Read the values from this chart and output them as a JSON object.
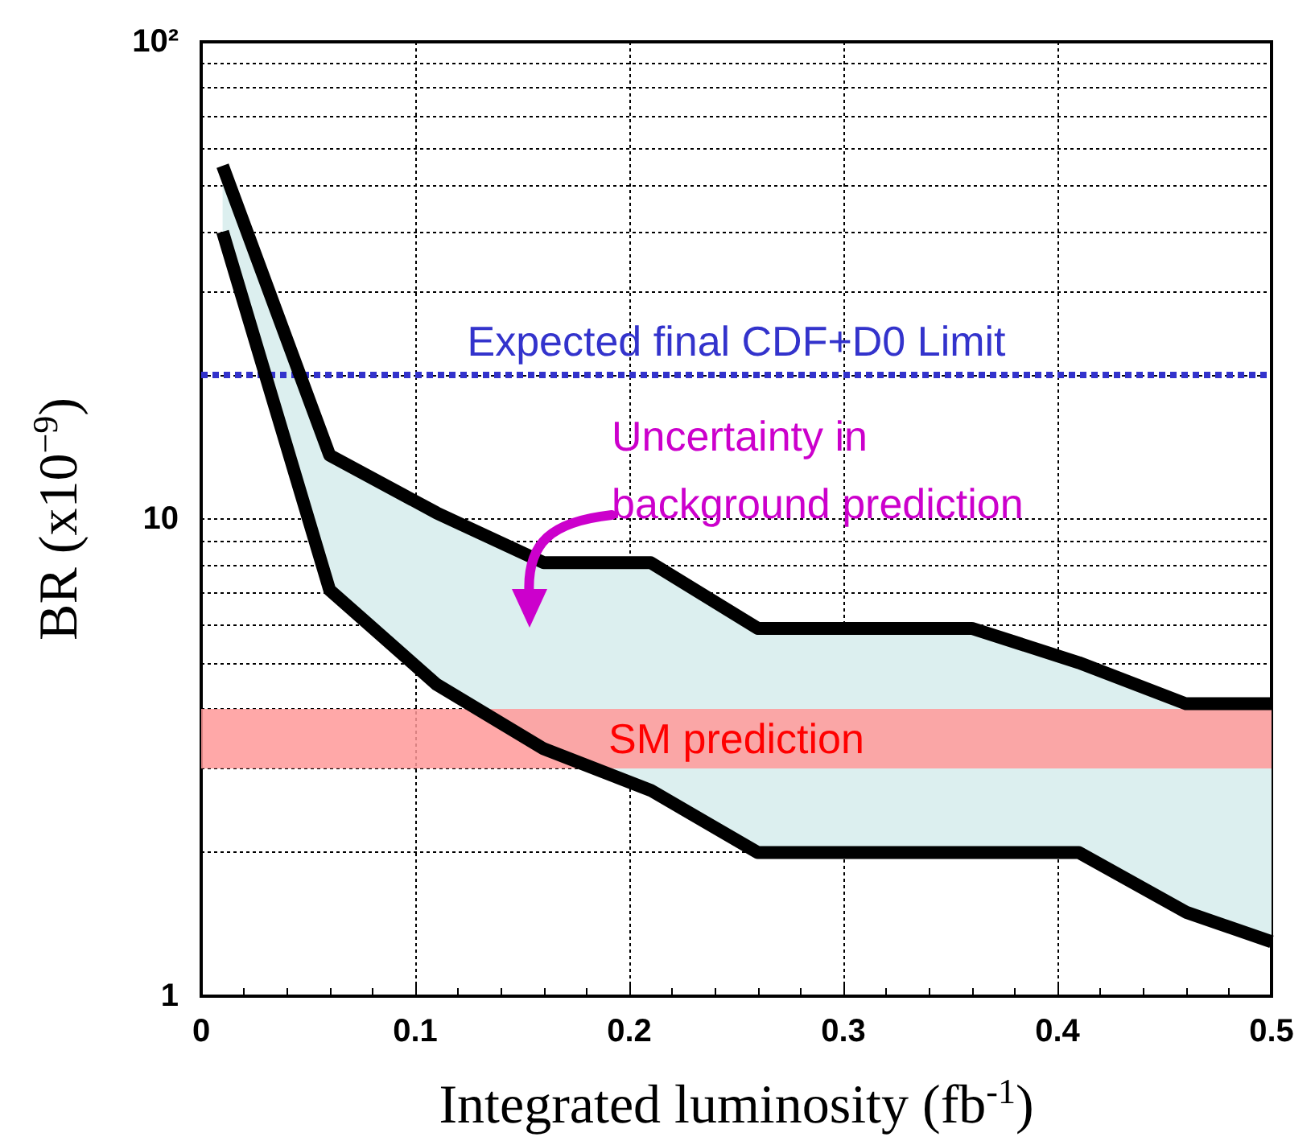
{
  "chart_data": {
    "type": "line",
    "xlabel": "Integrated luminosity (fb$^{-1}$)",
    "ylabel": "BR (x10$^{−9}$)",
    "x": [
      0.01,
      0.06,
      0.11,
      0.16,
      0.21,
      0.26,
      0.31,
      0.36,
      0.41,
      0.46,
      0.5
    ],
    "series": [
      {
        "type": "area",
        "color": "#dcefef",
        "values": [
          55,
          13.6,
          10.3,
          8.1,
          8.1,
          5.9,
          5.9,
          5.9,
          5.0,
          4.1,
          4.1
        ]
      },
      {
        "color": "#000000",
        "values": [
          40,
          7.1,
          4.5,
          3.3,
          2.7,
          2.0,
          2.0,
          2.0,
          2.0,
          1.5,
          1.3
        ]
      }
    ],
    "xlim": [
      0,
      0.5
    ],
    "xticks": [
      0,
      0.1,
      0.2,
      0.3,
      0.4,
      0.5
    ],
    "ylim": [
      1,
      100
    ],
    "log": "y",
    "yticks": [
      1,
      {
        "value": 2,
        "label": null
      },
      {
        "value": 3,
        "label": null
      },
      {
        "value": 4,
        "label": null
      },
      {
        "value": 5,
        "label": null
      },
      {
        "value": 6,
        "label": null
      },
      {
        "value": 7,
        "label": null
      },
      {
        "value": 8,
        "label": null
      },
      {
        "value": 9,
        "label": null
      },
      10,
      {
        "value": 20,
        "label": null
      },
      {
        "value": 30,
        "label": null
      },
      {
        "value": 40,
        "label": null
      },
      {
        "value": 50,
        "label": null
      },
      {
        "value": 60,
        "label": null
      },
      {
        "value": 70,
        "label": null
      },
      {
        "value": 80,
        "label": null
      },
      {
        "value": 90,
        "label": null
      },
      {
        "value": 100,
        "label": "10²"
      }
    ],
    "grid": true,
    "marker": "none",
    "ref_lines": [
      {
        "axis": "y",
        "value": 20,
        "label": "Expected final CDF+D0 Limit",
        "color": "#3333cc",
        "line_style": "dotted"
      }
    ],
    "bands": [
      {
        "axis": "y",
        "from": 3,
        "to": 4,
        "label": "SM prediction",
        "color": "#ff9999"
      }
    ],
    "annotations": [
      "Uncertainty in\nbackground prediction"
    ]
  }
}
